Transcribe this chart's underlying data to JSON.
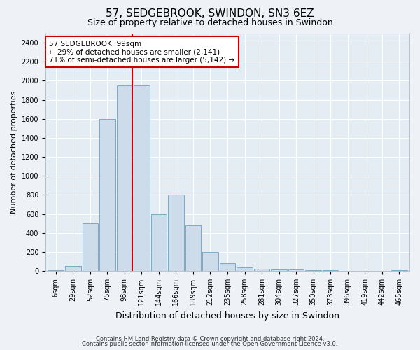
{
  "title": "57, SEDGEBROOK, SWINDON, SN3 6EZ",
  "subtitle": "Size of property relative to detached houses in Swindon",
  "xlabel": "Distribution of detached houses by size in Swindon",
  "ylabel": "Number of detached properties",
  "bin_labels": [
    "6sqm",
    "29sqm",
    "52sqm",
    "75sqm",
    "98sqm",
    "121sqm",
    "144sqm",
    "166sqm",
    "189sqm",
    "212sqm",
    "235sqm",
    "258sqm",
    "281sqm",
    "304sqm",
    "327sqm",
    "350sqm",
    "373sqm",
    "396sqm",
    "419sqm",
    "442sqm",
    "465sqm"
  ],
  "bar_values": [
    5,
    50,
    500,
    1600,
    1950,
    1950,
    600,
    800,
    480,
    200,
    80,
    35,
    20,
    15,
    12,
    8,
    5,
    3,
    2,
    2,
    10
  ],
  "bar_color": "#ccdcea",
  "bar_edge_color": "#7aaac8",
  "ylim": [
    0,
    2500
  ],
  "yticks": [
    0,
    200,
    400,
    600,
    800,
    1000,
    1200,
    1400,
    1600,
    1800,
    2000,
    2200,
    2400
  ],
  "property_line_bin": 4,
  "property_line_color": "#cc0000",
  "annotation_text": "57 SEDGEBROOK: 99sqm\n← 29% of detached houses are smaller (2,141)\n71% of semi-detached houses are larger (5,142) →",
  "footnote1": "Contains HM Land Registry data © Crown copyright and database right 2024.",
  "footnote2": "Contains public sector information licensed under the Open Government Licence v3.0.",
  "bg_color": "#eef2f7",
  "plot_bg_color": "#e4ecf4",
  "grid_color": "#ffffff",
  "title_fontsize": 11,
  "subtitle_fontsize": 9,
  "ylabel_fontsize": 8,
  "xlabel_fontsize": 9,
  "tick_fontsize": 7,
  "annot_fontsize": 7.5,
  "footnote_fontsize": 6
}
